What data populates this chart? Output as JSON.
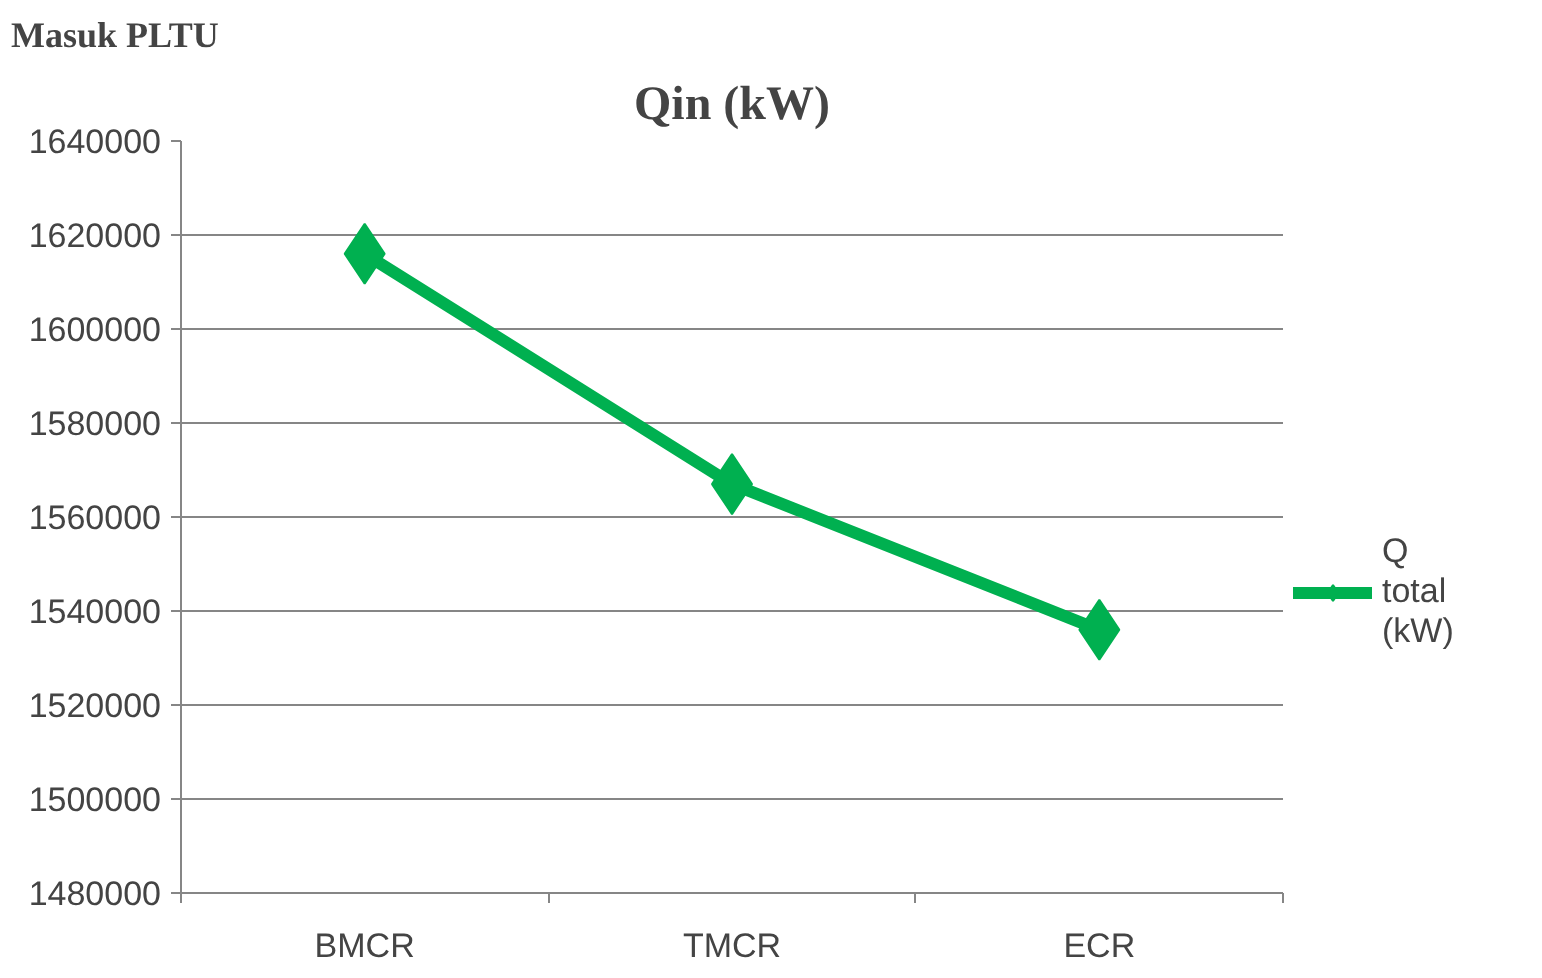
{
  "chart_data": {
    "type": "line",
    "title": "Qin (kW)",
    "annotations": [
      "Masuk PLTU"
    ],
    "categories": [
      "BMCR",
      "TMCR",
      "ECR"
    ],
    "series": [
      {
        "name": "Q total (kW)",
        "color": "#00b050",
        "values": [
          1616000,
          1567000,
          1536000
        ]
      }
    ],
    "ylim": [
      1480000,
      1640000
    ],
    "yticks": [
      1480000,
      1500000,
      1520000,
      1540000,
      1560000,
      1580000,
      1600000,
      1620000,
      1640000
    ],
    "grid": "y",
    "legend": "right",
    "marker": "diamond",
    "line_style": "solid"
  }
}
